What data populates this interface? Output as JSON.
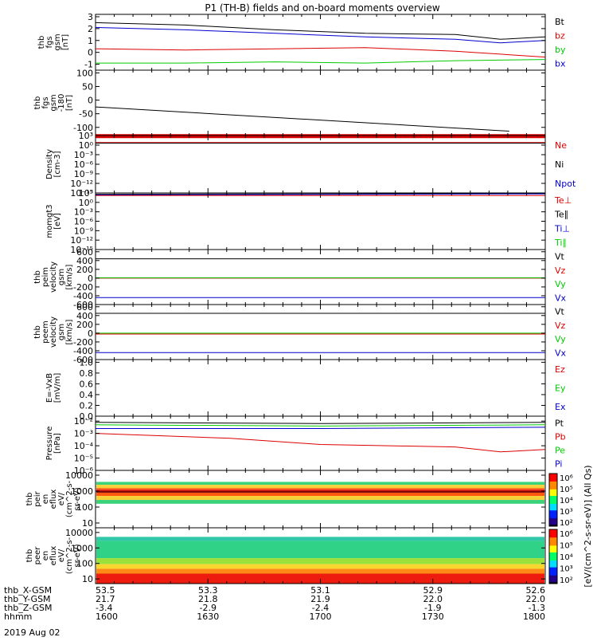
{
  "title": "P1 (TH-B) fields and on-board moments overview",
  "date_label": "2019 Aug 02",
  "chart_data": [
    {
      "type": "line",
      "ylabel_lines": [
        "thb",
        "fgs",
        "gsm",
        "[nT]"
      ],
      "yticks": [
        3,
        2,
        1,
        0,
        -1
      ],
      "ylim": [
        -1.5,
        3.2
      ],
      "legend": [
        {
          "text": "Bt",
          "color": "#000000"
        },
        {
          "text": "bz",
          "color": "#dd0000"
        },
        {
          "text": "by",
          "color": "#00cc00"
        },
        {
          "text": "bx",
          "color": "#0000cc"
        }
      ],
      "series": [
        {
          "color": "#000000",
          "x": [
            0,
            0.2,
            0.4,
            0.6,
            0.8,
            0.9,
            1
          ],
          "values": [
            2.5,
            2.3,
            1.9,
            1.6,
            1.5,
            1.1,
            1.3
          ]
        },
        {
          "color": "#0000cc",
          "x": [
            0,
            0.2,
            0.4,
            0.6,
            0.8,
            0.9,
            1
          ],
          "values": [
            2.1,
            1.9,
            1.6,
            1.3,
            1.1,
            0.8,
            1.0
          ]
        },
        {
          "color": "#dd0000",
          "x": [
            0,
            0.2,
            0.4,
            0.6,
            0.8,
            1
          ],
          "values": [
            0.3,
            0.2,
            0.3,
            0.4,
            0.1,
            -0.4
          ]
        },
        {
          "color": "#00cc00",
          "x": [
            0,
            0.2,
            0.4,
            0.6,
            0.8,
            1
          ],
          "values": [
            -0.9,
            -0.9,
            -0.8,
            -0.9,
            -0.7,
            -0.6
          ]
        }
      ]
    },
    {
      "type": "line",
      "ylabel_lines": [
        "thb",
        "fgs",
        "gsm",
        "-180",
        "[nT]"
      ],
      "yticks": [
        100,
        50,
        0,
        -50,
        -100
      ],
      "ylim": [
        -130,
        110
      ],
      "legend": [],
      "series": [
        {
          "color": "#000000",
          "x": [
            0,
            0.9,
            0.92
          ],
          "values": [
            -25,
            -112,
            -114
          ]
        },
        {
          "color": "#dd0000",
          "x": [
            0,
            1
          ],
          "values": [
            -132,
            -132
          ]
        }
      ]
    },
    {
      "type": "line",
      "ylabel_lines": [
        "Density",
        "[cm-3]"
      ],
      "yticks": [
        "10³",
        "10⁰",
        "10⁻³",
        "10⁻⁶",
        "10⁻⁹",
        "10⁻¹²",
        "10⁻¹⁵"
      ],
      "ylim": [
        -15,
        3
      ],
      "legend": [
        {
          "text": "Ne",
          "color": "#dd0000"
        },
        {
          "text": "Ni",
          "color": "#000000"
        },
        {
          "text": "Npot",
          "color": "#0000cc"
        }
      ],
      "series": [
        {
          "color": "#dd0000",
          "x": [
            0,
            1
          ],
          "values": [
            0.8,
            0.8
          ]
        },
        {
          "color": "#000000",
          "x": [
            0,
            1
          ],
          "values": [
            0.6,
            0.6
          ]
        }
      ]
    },
    {
      "type": "line",
      "ylabel_lines": [
        "momgt3",
        "[eV]"
      ],
      "yticks": [
        "10³",
        "10⁰",
        "10⁻³",
        "10⁻⁶",
        "10⁻⁹",
        "10⁻¹²",
        "10⁻¹⁵"
      ],
      "ylim": [
        -15,
        3
      ],
      "legend": [
        {
          "text": "Te⊥",
          "color": "#dd0000"
        },
        {
          "text": "Te∥",
          "color": "#000000"
        },
        {
          "text": "Ti⊥",
          "color": "#0000cc"
        },
        {
          "text": "Ti∥",
          "color": "#00cc00"
        }
      ],
      "series": [
        {
          "color": "#000000",
          "x": [
            0,
            1
          ],
          "values": [
            2.6,
            2.8
          ]
        },
        {
          "color": "#0000cc",
          "x": [
            0,
            1
          ],
          "values": [
            2.4,
            2.7
          ]
        },
        {
          "color": "#dd0000",
          "x": [
            0,
            1
          ],
          "values": [
            2.2,
            2.2
          ]
        }
      ]
    },
    {
      "type": "line",
      "ylabel_lines": [
        "thb",
        "peim",
        "velocity",
        "gsm",
        "[km/s]"
      ],
      "yticks": [
        600,
        400,
        200,
        0,
        -200,
        -400,
        -600
      ],
      "ylim": [
        -600,
        650
      ],
      "legend": [
        {
          "text": "Vt",
          "color": "#000000"
        },
        {
          "text": "Vz",
          "color": "#dd0000"
        },
        {
          "text": "Vy",
          "color": "#00cc00"
        },
        {
          "text": "Vx",
          "color": "#0000cc"
        }
      ],
      "series": [
        {
          "color": "#000000",
          "x": [
            0,
            1
          ],
          "values": [
            440,
            440
          ]
        },
        {
          "color": "#dd0000",
          "x": [
            0,
            1
          ],
          "values": [
            0,
            0
          ]
        },
        {
          "color": "#00cc00",
          "x": [
            0,
            1
          ],
          "values": [
            8,
            8
          ]
        },
        {
          "color": "#0000cc",
          "x": [
            0,
            1
          ],
          "values": [
            -440,
            -440
          ]
        }
      ]
    },
    {
      "type": "line",
      "ylabel_lines": [
        "thb",
        "peem",
        "velocity",
        "gsm",
        "[km/s]"
      ],
      "yticks": [
        600,
        400,
        200,
        0,
        -200,
        -400,
        -600
      ],
      "ylim": [
        -600,
        650
      ],
      "legend": [
        {
          "text": "Vt",
          "color": "#000000"
        },
        {
          "text": "Vz",
          "color": "#dd0000"
        },
        {
          "text": "Vy",
          "color": "#00cc00"
        },
        {
          "text": "Vx",
          "color": "#0000cc"
        }
      ],
      "series": [
        {
          "color": "#000000",
          "x": [
            0,
            1
          ],
          "values": [
            450,
            450
          ]
        },
        {
          "color": "#dd0000",
          "x": [
            0,
            1
          ],
          "values": [
            -20,
            -20
          ]
        },
        {
          "color": "#00cc00",
          "x": [
            0,
            1
          ],
          "values": [
            0,
            0
          ]
        },
        {
          "color": "#0000cc",
          "x": [
            0,
            1
          ],
          "values": [
            -440,
            -440
          ]
        }
      ]
    },
    {
      "type": "line",
      "ylabel_lines": [
        "E=-VxB",
        "[mV/m]"
      ],
      "yticks": [
        "1.0",
        "0.8",
        "0.6",
        "0.4",
        "0.2",
        "0.0"
      ],
      "ylim": [
        0,
        1.05
      ],
      "legend": [
        {
          "text": "Ez",
          "color": "#dd0000"
        },
        {
          "text": "Ey",
          "color": "#00cc00"
        },
        {
          "text": "Ex",
          "color": "#0000cc"
        }
      ],
      "series": []
    },
    {
      "type": "line",
      "ylabel_lines": [
        "Pressure",
        "[nPa]"
      ],
      "yticks": [
        "10⁻²",
        "10⁻³",
        "10⁻⁴",
        "10⁻⁵",
        "10⁻⁶"
      ],
      "ylim": [
        -6,
        -1.6
      ],
      "legend": [
        {
          "text": "Pt",
          "color": "#000000"
        },
        {
          "text": "Pb",
          "color": "#dd0000"
        },
        {
          "text": "Pe",
          "color": "#00cc00"
        },
        {
          "text": "Pi",
          "color": "#0000cc"
        }
      ],
      "series": [
        {
          "color": "#000000",
          "x": [
            0,
            0.5,
            1
          ],
          "values": [
            -2.1,
            -2.2,
            -2.1
          ]
        },
        {
          "color": "#00cc00",
          "x": [
            0,
            0.5,
            1
          ],
          "values": [
            -2.3,
            -2.4,
            -2.3
          ]
        },
        {
          "color": "#0000cc",
          "x": [
            0,
            0.5,
            1
          ],
          "values": [
            -2.6,
            -2.6,
            -2.5
          ]
        },
        {
          "color": "#dd0000",
          "x": [
            0,
            0.3,
            0.5,
            0.8,
            0.9,
            1
          ],
          "values": [
            -3.0,
            -3.4,
            -3.9,
            -4.1,
            -4.5,
            -4.3
          ]
        }
      ]
    },
    {
      "type": "heatmap",
      "ylabel_lines": [
        "thb",
        "peir",
        "en",
        "eflux",
        "eV/",
        "(cm^2-s-",
        "sr-eV)"
      ],
      "yticks": [
        "10000",
        "1000",
        "100",
        "10"
      ],
      "ylim": [
        5,
        20000
      ],
      "legend": [],
      "bands": [
        {
          "from": 20000,
          "to": 3800,
          "color": "#ffffff"
        },
        {
          "from": 3800,
          "to": 2500,
          "color": "#3cd27a"
        },
        {
          "from": 2500,
          "to": 1600,
          "color": "#f6d23a"
        },
        {
          "from": 1600,
          "to": 1300,
          "color": "#ff7b16"
        },
        {
          "from": 1300,
          "to": 1050,
          "color": "#ee1c0e"
        },
        {
          "from": 1050,
          "to": 800,
          "color": "#7a0006"
        },
        {
          "from": 800,
          "to": 500,
          "color": "#ff5a10"
        },
        {
          "from": 500,
          "to": 280,
          "color": "#f6d23a"
        },
        {
          "from": 280,
          "to": 160,
          "color": "#3cd27a"
        },
        {
          "from": 160,
          "to": 5,
          "color": "#ffffff"
        }
      ]
    },
    {
      "type": "heatmap",
      "ylabel_lines": [
        "thb",
        "peer",
        "en",
        "eflux",
        "eV/",
        "(cm^2-s-",
        "sr-eV)"
      ],
      "yticks": [
        "10000",
        "1000",
        "100",
        "10"
      ],
      "ylim": [
        5,
        20000
      ],
      "legend": [],
      "bands": [
        {
          "from": 20000,
          "to": 5200,
          "color": "#ffffff"
        },
        {
          "from": 5200,
          "to": 2800,
          "color": "#31c8a8"
        },
        {
          "from": 2800,
          "to": 220,
          "color": "#2fd287"
        },
        {
          "from": 220,
          "to": 90,
          "color": "#9be03c"
        },
        {
          "from": 90,
          "to": 45,
          "color": "#f7d72f"
        },
        {
          "from": 45,
          "to": 22,
          "color": "#ff8a18"
        },
        {
          "from": 22,
          "to": 5,
          "color": "#ee1c0e"
        }
      ]
    }
  ],
  "colorbars": [
    {
      "ticks": [
        "10⁶",
        "10⁵",
        "10⁴",
        "10³",
        "10²"
      ]
    },
    {
      "ticks": [
        "10⁶",
        "10⁵",
        "10⁴",
        "10³",
        "10²"
      ]
    }
  ],
  "colorbar_label": "[eV/(cm^2-s-sr-eV)] (All Qs)",
  "orbit": {
    "row_labels": [
      "thb_X-GSM",
      "thb_Y-GSM",
      "thb_Z-GSM",
      "hhmm"
    ],
    "columns": [
      {
        "values": [
          "53.5",
          "21.7",
          "-3.4",
          "1600"
        ]
      },
      {
        "values": [
          "53.3",
          "21.8",
          "-2.9",
          "1630"
        ]
      },
      {
        "values": [
          "53.1",
          "21.9",
          "-2.4",
          "1700"
        ]
      },
      {
        "values": [
          "52.9",
          "22.0",
          "-1.9",
          "1730"
        ]
      },
      {
        "values": [
          "52.6",
          "22.0",
          "-1.3",
          "1800"
        ]
      }
    ]
  }
}
